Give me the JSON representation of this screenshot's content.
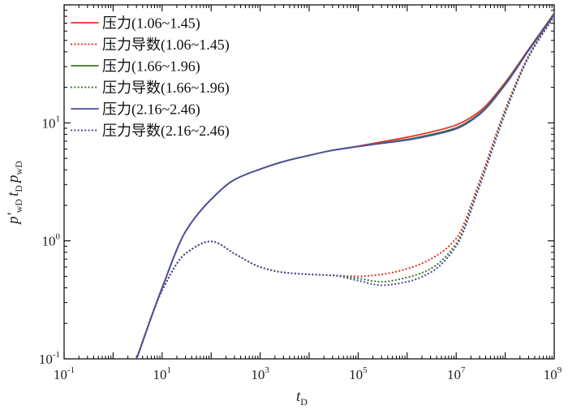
{
  "chart_data": {
    "type": "line",
    "xscale": "log",
    "yscale": "log",
    "xlim": [
      0.1,
      1000000000
    ],
    "ylim": [
      0.1,
      100
    ],
    "xticks": [
      {
        "base": "10",
        "exp": "-1",
        "value": 0.1
      },
      {
        "base": "10",
        "exp": "1",
        "value": 10
      },
      {
        "base": "10",
        "exp": "3",
        "value": 1000
      },
      {
        "base": "10",
        "exp": "5",
        "value": 100000
      },
      {
        "base": "10",
        "exp": "7",
        "value": 10000000
      },
      {
        "base": "10",
        "exp": "9",
        "value": 1000000000
      }
    ],
    "yticks": [
      {
        "base": "10",
        "exp": "-1",
        "value": 0.1
      },
      {
        "base": "10",
        "exp": "0",
        "value": 1
      },
      {
        "base": "10",
        "exp": "1",
        "value": 10
      }
    ],
    "xlabel": {
      "main": "t",
      "sub": "D"
    },
    "ylabel": {
      "p1": "p′",
      "s1": "wD",
      "t": "t",
      "s2": "D",
      "p2": "p",
      "s3": "wD"
    },
    "legend_position": "top-left",
    "series": [
      {
        "name": "压力(1.06~1.45)",
        "color": "#e8312a",
        "dash": "solid",
        "x": [
          3,
          10,
          30,
          100,
          300,
          1000,
          3000,
          10000,
          30000,
          100000,
          300000,
          1000000,
          3000000,
          10000000,
          30000000,
          100000000,
          300000000,
          1000000000
        ],
        "y": [
          0.1,
          0.4,
          1.2,
          2.25,
          3.3,
          4.05,
          4.7,
          5.3,
          5.85,
          6.35,
          6.9,
          7.55,
          8.35,
          9.6,
          12.5,
          22,
          42,
          85
        ]
      },
      {
        "name": "压力导数(1.06~1.45)",
        "color": "#e8312a",
        "dash": "dot",
        "x": [
          3,
          10,
          30,
          100,
          300,
          1000,
          3000,
          10000,
          30000,
          100000,
          300000,
          1000000,
          3000000,
          10000000,
          30000000,
          100000000,
          300000000,
          1000000000
        ],
        "y": [
          0.1,
          0.38,
          0.78,
          0.99,
          0.78,
          0.6,
          0.54,
          0.52,
          0.51,
          0.5,
          0.52,
          0.58,
          0.7,
          1.05,
          3.2,
          13,
          37,
          82
        ]
      },
      {
        "name": "压力(1.66~1.96)",
        "color": "#3d7b28",
        "dash": "solid",
        "x": [
          3,
          10,
          30,
          100,
          300,
          1000,
          3000,
          10000,
          30000,
          100000,
          300000,
          1000000,
          3000000,
          10000000,
          30000000,
          100000000,
          300000000,
          1000000000
        ],
        "y": [
          0.1,
          0.4,
          1.2,
          2.25,
          3.3,
          4.05,
          4.7,
          5.3,
          5.85,
          6.3,
          6.75,
          7.25,
          7.95,
          9.1,
          12,
          21.5,
          41.5,
          84
        ]
      },
      {
        "name": "压力导数(1.66~1.96)",
        "color": "#3d7b28",
        "dash": "dot",
        "x": [
          3,
          10,
          30,
          100,
          300,
          1000,
          3000,
          10000,
          30000,
          100000,
          300000,
          1000000,
          3000000,
          10000000,
          30000000,
          100000000,
          300000000,
          1000000000
        ],
        "y": [
          0.1,
          0.38,
          0.78,
          0.99,
          0.78,
          0.6,
          0.54,
          0.52,
          0.51,
          0.48,
          0.45,
          0.49,
          0.58,
          0.95,
          3,
          12.5,
          36.5,
          81
        ]
      },
      {
        "name": "压力(2.16~2.46)",
        "color": "#4a4fa0",
        "dash": "solid",
        "x": [
          3,
          10,
          30,
          100,
          300,
          1000,
          3000,
          10000,
          30000,
          100000,
          300000,
          1000000,
          3000000,
          10000000,
          30000000,
          100000000,
          300000000,
          1000000000
        ],
        "y": [
          0.1,
          0.4,
          1.2,
          2.25,
          3.3,
          4.05,
          4.7,
          5.3,
          5.85,
          6.3,
          6.7,
          7.15,
          7.8,
          8.9,
          11.8,
          21,
          41,
          83
        ]
      },
      {
        "name": "压力导数(2.16~2.46)",
        "color": "#4a4fa0",
        "dash": "dot",
        "x": [
          3,
          10,
          30,
          100,
          300,
          1000,
          3000,
          10000,
          30000,
          100000,
          300000,
          1000000,
          3000000,
          10000000,
          30000000,
          100000000,
          300000000,
          1000000000
        ],
        "y": [
          0.1,
          0.38,
          0.78,
          0.99,
          0.78,
          0.6,
          0.54,
          0.52,
          0.51,
          0.46,
          0.42,
          0.45,
          0.54,
          0.9,
          2.9,
          12,
          36,
          80
        ]
      }
    ]
  }
}
